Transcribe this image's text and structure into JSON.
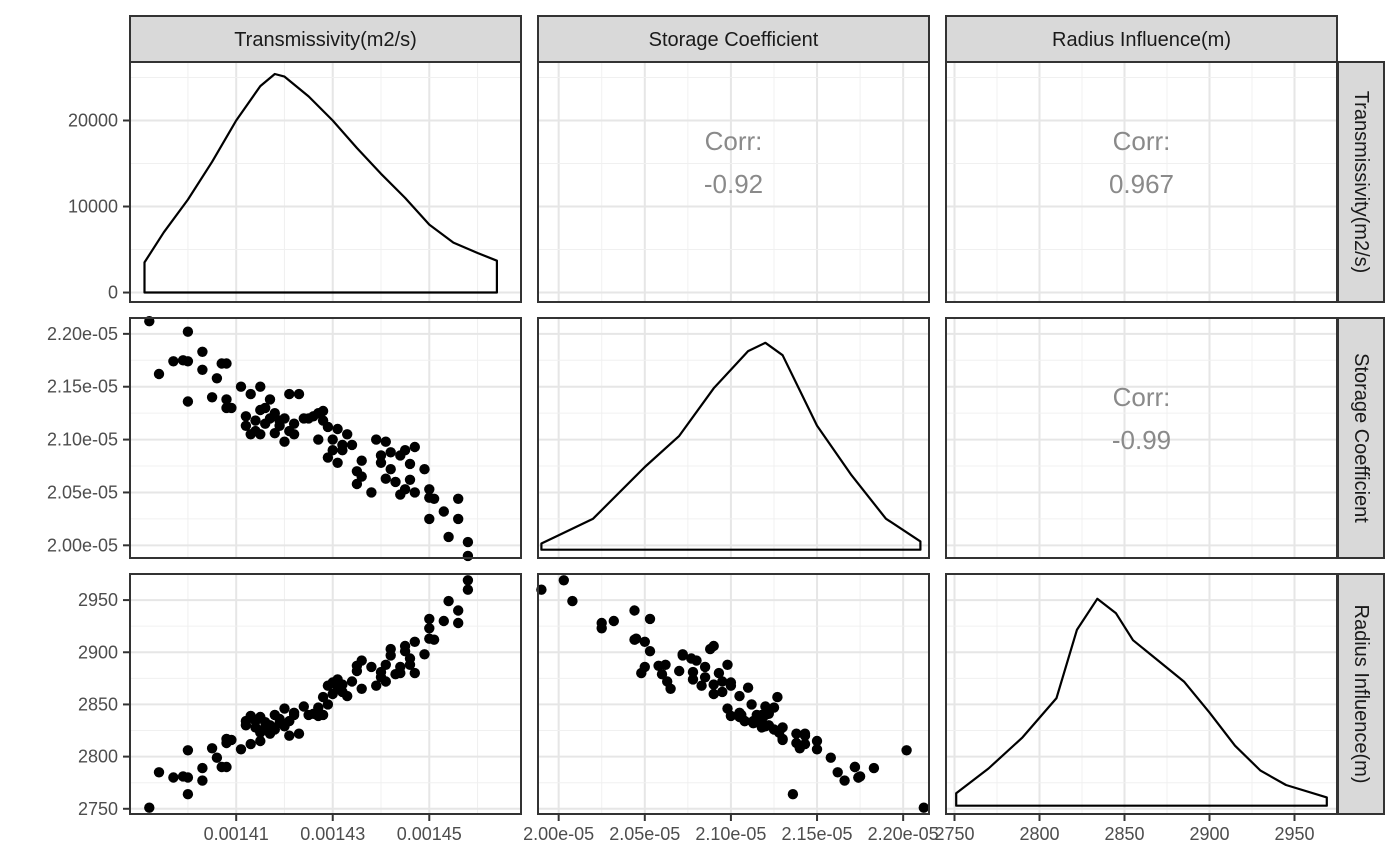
{
  "chart_data": {
    "type": "scatter",
    "variables": [
      "Transmissivity(m2/s)",
      "Storage Coefficient",
      "Radius Influence(m)"
    ],
    "axes": {
      "transmissivity": {
        "lim": [
          0.001388,
          0.001469
        ],
        "ticks": [
          0.00141,
          0.00143,
          0.00145
        ],
        "tick_labels": [
          "0.00141",
          "0.00143",
          "0.00145"
        ]
      },
      "storage": {
        "lim": [
          1.988e-05,
          2.215e-05
        ],
        "ticks": [
          2e-05,
          2.05e-05,
          2.1e-05,
          2.15e-05,
          2.2e-05
        ],
        "tick_labels": [
          "2.00e-05",
          "2.05e-05",
          "2.10e-05",
          "2.15e-05",
          "2.20e-05"
        ]
      },
      "radius": {
        "lim": [
          2745,
          2975
        ],
        "ticks": [
          2750,
          2800,
          2850,
          2900,
          2950
        ],
        "tick_labels": [
          "2750",
          "2800",
          "2850",
          "2900",
          "2950"
        ]
      },
      "density_t": {
        "lim": [
          -1100,
          26800
        ],
        "ticks": [
          0,
          10000,
          20000
        ],
        "tick_labels": [
          "0",
          "10000",
          "20000"
        ]
      }
    },
    "correlations": [
      {
        "row": 0,
        "col": 1,
        "label": "Corr:",
        "value": "-0.92"
      },
      {
        "row": 0,
        "col": 2,
        "label": "Corr:",
        "value": "0.967"
      },
      {
        "row": 1,
        "col": 2,
        "label": "Corr:",
        "value": "-0.99"
      }
    ],
    "density_transmissivity": {
      "x": [
        0.001391,
        0.001395,
        0.0014,
        0.001405,
        0.00141,
        0.001415,
        0.001418,
        0.00142,
        0.001425,
        0.00143,
        0.001435,
        0.00144,
        0.001445,
        0.00145,
        0.001455,
        0.00146,
        0.001464
      ],
      "y": [
        3500,
        7000,
        10800,
        15200,
        20000,
        24000,
        25400,
        25100,
        22800,
        20000,
        16800,
        13800,
        11000,
        7900,
        5800,
        4600,
        3700
      ]
    },
    "density_storage": {
      "x": [
        1.99e-05,
        2e-05,
        2.02e-05,
        2.05e-05,
        2.07e-05,
        2.09e-05,
        2.11e-05,
        2.12e-05,
        2.13e-05,
        2.15e-05,
        2.17e-05,
        2.19e-05,
        2.21e-05
      ],
      "y": [
        0.03,
        0.07,
        0.15,
        0.4,
        0.55,
        0.78,
        0.96,
        1.0,
        0.94,
        0.6,
        0.36,
        0.15,
        0.04
      ]
    },
    "density_radius": {
      "x": [
        2751,
        2770,
        2790,
        2810,
        2822,
        2834,
        2845,
        2855,
        2870,
        2885,
        2900,
        2915,
        2930,
        2945,
        2969
      ],
      "y": [
        0.06,
        0.18,
        0.33,
        0.52,
        0.85,
        1.0,
        0.93,
        0.8,
        0.7,
        0.6,
        0.45,
        0.29,
        0.17,
        0.1,
        0.04
      ]
    },
    "points": [
      {
        "T": 0.001392,
        "S": 2.212e-05,
        "R": 2751
      },
      {
        "T": 0.001394,
        "S": 2.162e-05,
        "R": 2785
      },
      {
        "T": 0.001397,
        "S": 2.174e-05,
        "R": 2780
      },
      {
        "T": 0.001399,
        "S": 2.175e-05,
        "R": 2781
      },
      {
        "T": 0.0014,
        "S": 2.202e-05,
        "R": 2806
      },
      {
        "T": 0.0014,
        "S": 2.136e-05,
        "R": 2764
      },
      {
        "T": 0.0014,
        "S": 2.174e-05,
        "R": 2780
      },
      {
        "T": 0.001403,
        "S": 2.183e-05,
        "R": 2789
      },
      {
        "T": 0.001403,
        "S": 2.166e-05,
        "R": 2777
      },
      {
        "T": 0.001405,
        "S": 2.14e-05,
        "R": 2808
      },
      {
        "T": 0.001406,
        "S": 2.158e-05,
        "R": 2799
      },
      {
        "T": 0.001407,
        "S": 2.172e-05,
        "R": 2790
      },
      {
        "T": 0.001408,
        "S": 2.138e-05,
        "R": 2813
      },
      {
        "T": 0.001408,
        "S": 2.13e-05,
        "R": 2817
      },
      {
        "T": 0.001409,
        "S": 2.13e-05,
        "R": 2816
      },
      {
        "T": 0.001408,
        "S": 2.172e-05,
        "R": 2790
      },
      {
        "T": 0.001411,
        "S": 2.15e-05,
        "R": 2807
      },
      {
        "T": 0.001412,
        "S": 2.113e-05,
        "R": 2834
      },
      {
        "T": 0.001412,
        "S": 2.122e-05,
        "R": 2830
      },
      {
        "T": 0.001413,
        "S": 2.105e-05,
        "R": 2839
      },
      {
        "T": 0.001413,
        "S": 2.143e-05,
        "R": 2812
      },
      {
        "T": 0.001414,
        "S": 2.118e-05,
        "R": 2828
      },
      {
        "T": 0.001414,
        "S": 2.108e-05,
        "R": 2834
      },
      {
        "T": 0.001415,
        "S": 2.128e-05,
        "R": 2823
      },
      {
        "T": 0.001415,
        "S": 2.15e-05,
        "R": 2815
      },
      {
        "T": 0.001415,
        "S": 2.105e-05,
        "R": 2838
      },
      {
        "T": 0.001416,
        "S": 2.13e-05,
        "R": 2828
      },
      {
        "T": 0.001416,
        "S": 2.115e-05,
        "R": 2833
      },
      {
        "T": 0.001417,
        "S": 2.138e-05,
        "R": 2822
      },
      {
        "T": 0.001417,
        "S": 2.12e-05,
        "R": 2830
      },
      {
        "T": 0.001418,
        "S": 2.106e-05,
        "R": 2840
      },
      {
        "T": 0.001418,
        "S": 2.125e-05,
        "R": 2826
      },
      {
        "T": 0.001419,
        "S": 2.113e-05,
        "R": 2832
      },
      {
        "T": 0.001419,
        "S": 2.118e-05,
        "R": 2836
      },
      {
        "T": 0.00142,
        "S": 2.098e-05,
        "R": 2846
      },
      {
        "T": 0.00142,
        "S": 2.12e-05,
        "R": 2829
      },
      {
        "T": 0.001421,
        "S": 2.108e-05,
        "R": 2834
      },
      {
        "T": 0.001421,
        "S": 2.143e-05,
        "R": 2820
      },
      {
        "T": 0.001422,
        "S": 2.115e-05,
        "R": 2840
      },
      {
        "T": 0.001422,
        "S": 2.105e-05,
        "R": 2842
      },
      {
        "T": 0.001423,
        "S": 2.143e-05,
        "R": 2822
      },
      {
        "T": 0.001424,
        "S": 2.12e-05,
        "R": 2848
      },
      {
        "T": 0.001425,
        "S": 2.12e-05,
        "R": 2840
      },
      {
        "T": 0.001426,
        "S": 2.122e-05,
        "R": 2841
      },
      {
        "T": 0.001427,
        "S": 2.125e-05,
        "R": 2847
      },
      {
        "T": 0.001427,
        "S": 2.1e-05,
        "R": 2839
      },
      {
        "T": 0.001428,
        "S": 2.118e-05,
        "R": 2840
      },
      {
        "T": 0.001428,
        "S": 2.127e-05,
        "R": 2857
      },
      {
        "T": 0.001429,
        "S": 2.083e-05,
        "R": 2868
      },
      {
        "T": 0.001429,
        "S": 2.112e-05,
        "R": 2850
      },
      {
        "T": 0.00143,
        "S": 2.09e-05,
        "R": 2860
      },
      {
        "T": 0.00143,
        "S": 2.1e-05,
        "R": 2871
      },
      {
        "T": 0.001431,
        "S": 2.11e-05,
        "R": 2866
      },
      {
        "T": 0.001431,
        "S": 2.078e-05,
        "R": 2874
      },
      {
        "T": 0.001432,
        "S": 2.095e-05,
        "R": 2862
      },
      {
        "T": 0.001432,
        "S": 2.09e-05,
        "R": 2869
      },
      {
        "T": 0.001433,
        "S": 2.105e-05,
        "R": 2858
      },
      {
        "T": 0.001434,
        "S": 2.095e-05,
        "R": 2872
      },
      {
        "T": 0.001435,
        "S": 2.07e-05,
        "R": 2882
      },
      {
        "T": 0.001435,
        "S": 2.058e-05,
        "R": 2887
      },
      {
        "T": 0.001436,
        "S": 2.065e-05,
        "R": 2865
      },
      {
        "T": 0.001436,
        "S": 2.08e-05,
        "R": 2892
      },
      {
        "T": 0.001438,
        "S": 2.05e-05,
        "R": 2886
      },
      {
        "T": 0.001439,
        "S": 2.1e-05,
        "R": 2868
      },
      {
        "T": 0.00144,
        "S": 2.085e-05,
        "R": 2876
      },
      {
        "T": 0.00144,
        "S": 2.078e-05,
        "R": 2881
      },
      {
        "T": 0.001441,
        "S": 2.098e-05,
        "R": 2888
      },
      {
        "T": 0.001441,
        "S": 2.063e-05,
        "R": 2872
      },
      {
        "T": 0.001442,
        "S": 2.088e-05,
        "R": 2903
      },
      {
        "T": 0.001442,
        "S": 2.072e-05,
        "R": 2897
      },
      {
        "T": 0.001443,
        "S": 2.06e-05,
        "R": 2879
      },
      {
        "T": 0.001444,
        "S": 2.048e-05,
        "R": 2880
      },
      {
        "T": 0.001444,
        "S": 2.085e-05,
        "R": 2886
      },
      {
        "T": 0.001445,
        "S": 2.09e-05,
        "R": 2906
      },
      {
        "T": 0.001445,
        "S": 2.053e-05,
        "R": 2901
      },
      {
        "T": 0.001446,
        "S": 2.077e-05,
        "R": 2894
      },
      {
        "T": 0.001446,
        "S": 2.062e-05,
        "R": 2888
      },
      {
        "T": 0.001447,
        "S": 2.05e-05,
        "R": 2910
      },
      {
        "T": 0.001447,
        "S": 2.093e-05,
        "R": 2880
      },
      {
        "T": 0.001449,
        "S": 2.072e-05,
        "R": 2898
      },
      {
        "T": 0.00145,
        "S": 2.053e-05,
        "R": 2932
      },
      {
        "T": 0.00145,
        "S": 2.025e-05,
        "R": 2923
      },
      {
        "T": 0.00145,
        "S": 2.045e-05,
        "R": 2913
      },
      {
        "T": 0.001451,
        "S": 2.044e-05,
        "R": 2912
      },
      {
        "T": 0.001453,
        "S": 2.032e-05,
        "R": 2930
      },
      {
        "T": 0.001454,
        "S": 2.008e-05,
        "R": 2949
      },
      {
        "T": 0.001456,
        "S": 2.044e-05,
        "R": 2940
      },
      {
        "T": 0.001456,
        "S": 2.025e-05,
        "R": 2928
      },
      {
        "T": 0.001458,
        "S": 2.003e-05,
        "R": 2969
      },
      {
        "T": 0.001458,
        "S": 1.99e-05,
        "R": 2960
      }
    ]
  }
}
